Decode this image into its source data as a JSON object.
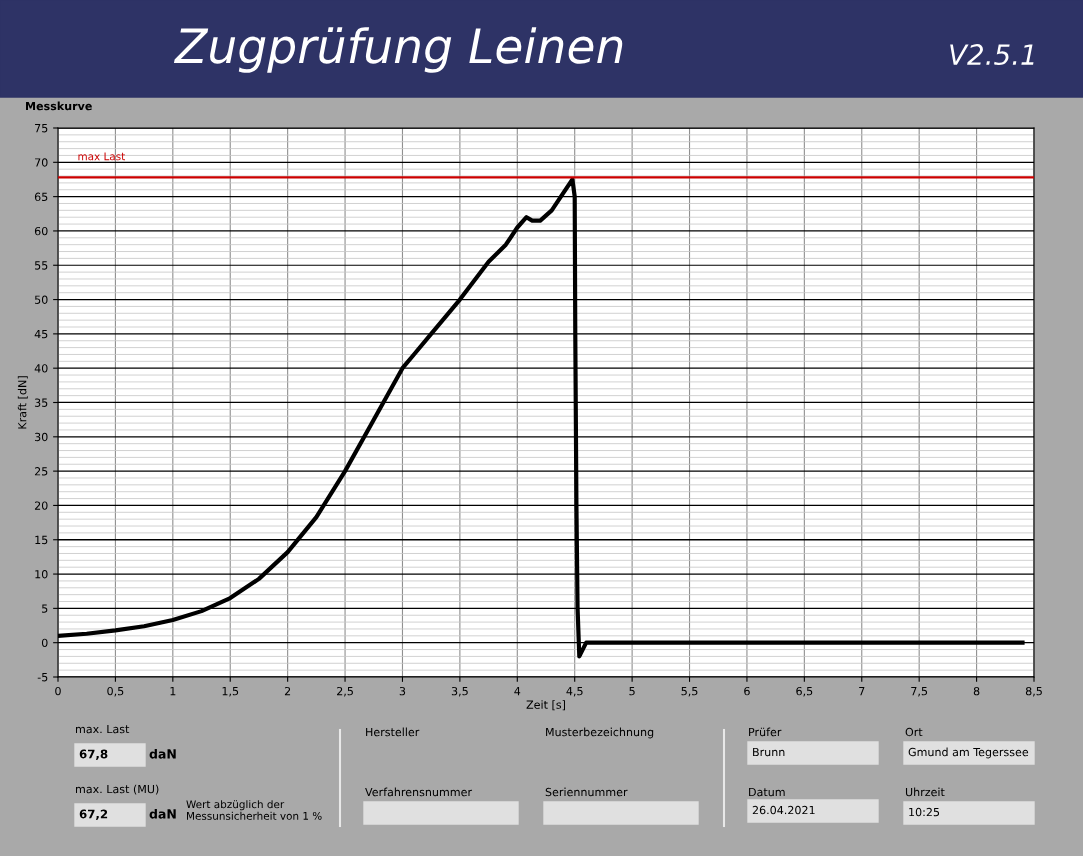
{
  "chart_data": {
    "type": "line",
    "title": "Zugprüfung Leinen",
    "subtitle": "Messkurve",
    "xlabel": "Zeit [s]",
    "ylabel": "Kraft [dN]",
    "x": [
      0,
      0.25,
      0.5,
      0.75,
      1,
      1.25,
      1.5,
      1.75,
      2,
      2.25,
      2.5,
      2.75,
      3,
      3.1,
      3.25,
      3.5,
      3.75,
      3.9,
      4,
      4.08,
      4.13,
      4.2,
      4.3,
      4.4,
      4.48,
      4.5,
      4.505,
      4.515,
      4.525,
      4.54,
      4.6,
      5,
      6,
      7,
      8,
      8.4
    ],
    "series": [
      {
        "color": "#000000",
        "values": [
          1.0,
          1.3,
          1.8,
          2.4,
          3.3,
          4.6,
          6.5,
          9.3,
          13.2,
          18.3,
          25,
          32.5,
          40,
          42,
          45,
          50,
          55.5,
          58,
          60.5,
          62,
          61.5,
          61.5,
          63,
          65.5,
          67.5,
          65,
          45,
          20,
          5,
          -2,
          0,
          0,
          0,
          0,
          0,
          0
        ]
      }
    ],
    "xlim": [
      0,
      8.5
    ],
    "ylim": [
      -5,
      75
    ],
    "xticks": [
      0,
      {
        "value": 0.5,
        "label": "0,5"
      },
      1,
      {
        "value": 1.5,
        "label": "1,5"
      },
      2,
      {
        "value": 2.5,
        "label": "2,5"
      },
      3,
      {
        "value": 3.5,
        "label": "3,5"
      },
      4,
      {
        "value": 4.5,
        "label": "4,5"
      },
      5,
      {
        "value": 5.5,
        "label": "5,5"
      },
      6,
      {
        "value": 6.5,
        "label": "6,5"
      },
      7,
      {
        "value": 7.5,
        "label": "7,5"
      },
      8,
      {
        "value": 8.5,
        "label": "8,5"
      }
    ],
    "yticks": [
      -5,
      0,
      5,
      10,
      15,
      20,
      25,
      30,
      35,
      40,
      45,
      50,
      55,
      60,
      65,
      70,
      75
    ],
    "ref_lines": [
      {
        "axis": "y",
        "value": 67.8,
        "label": "max Last",
        "color": "#cc0000"
      }
    ],
    "grid": true,
    "legend": false,
    "marker": "none",
    "line_style": "solid",
    "annotations": [
      "V2.5.1",
      "max. Last",
      "67,8",
      "daN",
      "max. Last (MU)",
      "67,2",
      "daN",
      "Wert abzüglich der\nMessunsicherheit von 1 %",
      "Hersteller",
      "Musterbezeichnung",
      "Verfahrensnummer",
      "Seriennummer",
      "Prüfer",
      "Brunn",
      "Ort",
      "Gmund am Tegerssee",
      "Datum",
      "26.04.2021",
      "Uhrzeit",
      "10:25"
    ]
  }
}
